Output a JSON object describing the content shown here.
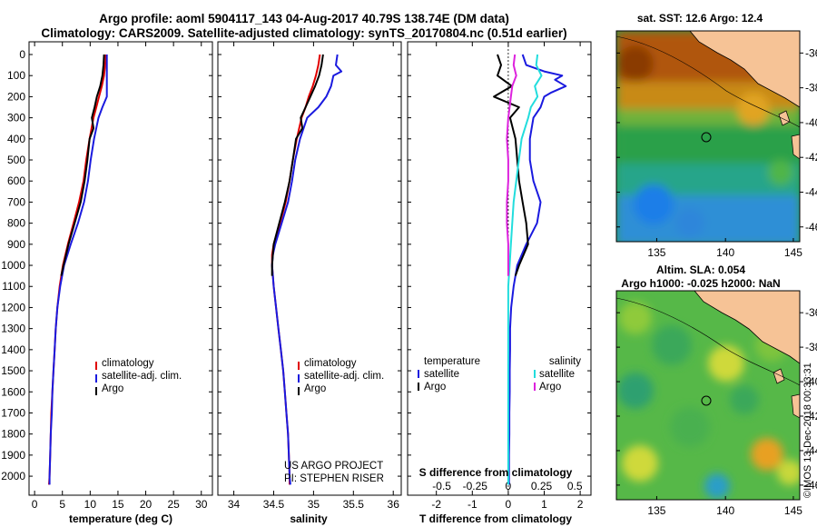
{
  "title_line1": "Argo profile: aoml 5904117_143 04-Aug-2017 40.79S 138.74E (DM data)",
  "title_line2": "Climatology: CARS2009. Satellite-adjusted climatology: synTS_20170804.nc (0.51d earlier)",
  "colors": {
    "climatology": "#e00000",
    "satellite": "#1a1adf",
    "argo": "#000000",
    "satellite_s": "#22dddd",
    "argo_s": "#dd22dd",
    "land": "#f6c396"
  },
  "depth_axis": {
    "min": 0,
    "max": 2060,
    "ticks": [
      0,
      100,
      200,
      300,
      400,
      500,
      600,
      700,
      800,
      900,
      1000,
      1100,
      1200,
      1300,
      1400,
      1500,
      1600,
      1700,
      1800,
      1900,
      2000
    ]
  },
  "chart_data": [
    {
      "type": "line",
      "name": "temperature",
      "xlabel": "temperature (deg C)",
      "xlim": [
        -1,
        32
      ],
      "xticks": [
        0,
        5,
        10,
        15,
        20,
        25,
        30
      ],
      "ylim_depth": [
        0,
        2060
      ],
      "legend": [
        "climatology",
        "satellite-adj. clim.",
        "Argo"
      ],
      "series": [
        {
          "name": "climatology",
          "color": "#e00000",
          "depth": [
            0,
            50,
            100,
            150,
            200,
            250,
            300,
            400,
            500,
            600,
            700,
            800,
            900,
            1000,
            1100,
            1200,
            1300,
            1400,
            1500,
            1600,
            1700,
            1800,
            1900,
            2000,
            2040
          ],
          "values": [
            12.8,
            12.7,
            12.5,
            12.1,
            11.6,
            11.1,
            10.6,
            9.9,
            9.3,
            8.8,
            8.0,
            7.0,
            6.0,
            5.1,
            4.5,
            4.1,
            3.8,
            3.6,
            3.4,
            3.2,
            3.0,
            2.9,
            2.8,
            2.7,
            2.6
          ]
        },
        {
          "name": "satellite-adj. clim.",
          "color": "#1a1adf",
          "depth": [
            0,
            50,
            100,
            150,
            200,
            250,
            300,
            400,
            500,
            600,
            700,
            800,
            900,
            1000,
            1100,
            1200,
            1300,
            1400,
            1500,
            1600,
            1700,
            1800,
            1900,
            2000,
            2040
          ],
          "values": [
            13.0,
            13.0,
            13.0,
            13.0,
            13.0,
            12.2,
            11.5,
            10.7,
            10.1,
            9.6,
            8.9,
            7.8,
            6.5,
            5.3,
            4.6,
            4.1,
            3.8,
            3.6,
            3.4,
            3.2,
            3.1,
            2.9,
            2.8,
            2.7,
            2.7
          ]
        },
        {
          "name": "Argo",
          "color": "#000000",
          "depth": [
            0,
            50,
            100,
            150,
            200,
            250,
            300,
            350,
            400,
            500,
            600,
            700,
            800,
            900,
            1000,
            1050
          ],
          "values": [
            12.5,
            12.4,
            12.2,
            11.8,
            11.2,
            10.8,
            10.3,
            10.6,
            9.9,
            9.5,
            9.0,
            8.3,
            7.2,
            6.1,
            5.2,
            4.8
          ]
        }
      ]
    },
    {
      "type": "line",
      "name": "salinity",
      "xlabel": "salinity",
      "xlim": [
        33.8,
        36.1
      ],
      "xticks": [
        34,
        34.5,
        35,
        35.5,
        36
      ],
      "ylim_depth": [
        0,
        2060
      ],
      "legend": [
        "climatology",
        "satellite-adj. clim.",
        "Argo"
      ],
      "series": [
        {
          "name": "climatology",
          "color": "#e00000",
          "depth": [
            0,
            50,
            100,
            150,
            200,
            250,
            300,
            400,
            500,
            600,
            700,
            800,
            900,
            950,
            1000,
            1100,
            1200,
            1300,
            1400,
            1500,
            1600,
            1700,
            1800,
            1900,
            2000,
            2040
          ],
          "values": [
            35.08,
            35.06,
            35.03,
            34.99,
            34.94,
            34.9,
            34.85,
            34.79,
            34.74,
            34.7,
            34.65,
            34.58,
            34.5,
            34.48,
            34.48,
            34.5,
            34.53,
            34.56,
            34.59,
            34.62,
            34.64,
            34.66,
            34.68,
            34.69,
            34.7,
            34.7
          ]
        },
        {
          "name": "satellite-adj. clim.",
          "color": "#1a1adf",
          "depth": [
            0,
            50,
            80,
            100,
            150,
            200,
            250,
            300,
            400,
            500,
            600,
            700,
            800,
            900,
            950,
            1000,
            1100,
            1200,
            1300,
            1400,
            1500,
            1600,
            1700,
            1800,
            1900,
            2000,
            2040
          ],
          "values": [
            35.3,
            35.28,
            35.35,
            35.25,
            35.22,
            35.16,
            35.06,
            34.92,
            34.83,
            34.77,
            34.73,
            34.68,
            34.6,
            34.52,
            34.49,
            34.48,
            34.5,
            34.53,
            34.56,
            34.59,
            34.62,
            34.64,
            34.66,
            34.68,
            34.69,
            34.7,
            34.71
          ]
        },
        {
          "name": "Argo",
          "color": "#000000",
          "depth": [
            0,
            50,
            100,
            150,
            200,
            250,
            300,
            350,
            400,
            500,
            600,
            700,
            800,
            900,
            1000,
            1050
          ],
          "values": [
            35.12,
            35.1,
            35.07,
            35.02,
            34.96,
            34.9,
            34.84,
            34.86,
            34.78,
            34.74,
            34.7,
            34.64,
            34.57,
            34.5,
            34.48,
            34.48
          ]
        }
      ]
    },
    {
      "type": "line",
      "name": "difference from climatology",
      "xlabel": "T difference from climatology",
      "xlabel_top": "S difference from climatology",
      "xlim": [
        -2.8,
        2.3
      ],
      "xticks": [
        -2,
        -1,
        0,
        1,
        2
      ],
      "xticks_top": [
        -0.5,
        -0.25,
        0,
        0.25,
        0.5
      ],
      "xticks_top_labels": [
        "-0.5",
        "-0.25",
        "0",
        "0.25",
        "0.5"
      ],
      "ylim_depth": [
        0,
        2060
      ],
      "legend_temperature_heading": "temperature",
      "legend_salinity_heading": "salinity",
      "legend_temperature": [
        "satellite",
        "Argo"
      ],
      "legend_salinity": [
        "satellite",
        "Argo"
      ],
      "series": [
        {
          "name": "T satellite",
          "color": "#1a1adf",
          "depth": [
            0,
            50,
            80,
            100,
            120,
            150,
            180,
            200,
            250,
            300,
            400,
            500,
            600,
            700,
            800,
            900,
            1000,
            1100,
            1200,
            1300,
            1400,
            1500,
            1600,
            1700,
            1800,
            1900,
            2000,
            2040
          ],
          "values": [
            0.4,
            0.5,
            1.0,
            1.5,
            1.3,
            1.6,
            1.2,
            1.0,
            0.9,
            0.7,
            0.6,
            0.6,
            0.7,
            0.9,
            0.8,
            0.5,
            0.25,
            0.15,
            0.08,
            0.05,
            0.05,
            0.04,
            0.04,
            0.03,
            0.03,
            0.02,
            0.02,
            0.02
          ]
        },
        {
          "name": "T Argo",
          "color": "#000000",
          "depth": [
            0,
            50,
            100,
            150,
            200,
            250,
            300,
            400,
            500,
            600,
            700,
            800,
            900,
            1000,
            1050
          ],
          "values": [
            -0.3,
            -0.2,
            -0.3,
            0.1,
            -0.4,
            0.3,
            0.05,
            0.2,
            0.25,
            0.3,
            0.4,
            0.5,
            0.55,
            0.3,
            0.2
          ]
        },
        {
          "name": "S satellite",
          "color": "#22dddd",
          "depth": [
            0,
            50,
            100,
            150,
            200,
            250,
            300,
            400,
            500,
            600,
            700,
            800,
            900,
            1000,
            1100,
            1200,
            1300,
            1400,
            1500,
            1600,
            1700,
            1800,
            1900,
            2000,
            2040
          ],
          "values": [
            0.22,
            0.21,
            0.25,
            0.2,
            0.22,
            0.17,
            0.15,
            0.1,
            0.08,
            0.06,
            0.04,
            0.03,
            0.02,
            0.01,
            0.0,
            0.0,
            0.0,
            0.0,
            0.0,
            0.0,
            0.0,
            0.0,
            0.0,
            0.0,
            0.0
          ]
        },
        {
          "name": "S Argo",
          "color": "#dd22dd",
          "depth": [
            0,
            50,
            100,
            150,
            200,
            250,
            300,
            400,
            500,
            600,
            700,
            800,
            900,
            1000,
            1050
          ],
          "values": [
            0.05,
            0.04,
            0.06,
            0.03,
            0.02,
            0.01,
            0.0,
            -0.01,
            0.0,
            0.0,
            -0.01,
            -0.01,
            0.0,
            0.0,
            0.0
          ]
        }
      ]
    }
  ],
  "credit_line1": "US ARGO PROJECT",
  "credit_line2": "PI: STEPHEN RISER",
  "map_top": {
    "title": "sat. SST: 12.6 Argo: 12.4",
    "yticks": [
      "-36",
      "-38",
      "-40",
      "-42",
      "-44",
      "-46"
    ],
    "xticks": [
      "135",
      "140",
      "145"
    ]
  },
  "map_bottom": {
    "title_line1": "Altim. SLA: 0.054",
    "title_line2": "Argo h1000: -0.025 h2000: NaN",
    "yticks": [
      "-36",
      "-38",
      "-40",
      "-42",
      "-44",
      "-46"
    ],
    "xticks": [
      "135",
      "140",
      "145"
    ]
  },
  "watermark": "©IMOS 13-Dec-2018 00:33:31"
}
